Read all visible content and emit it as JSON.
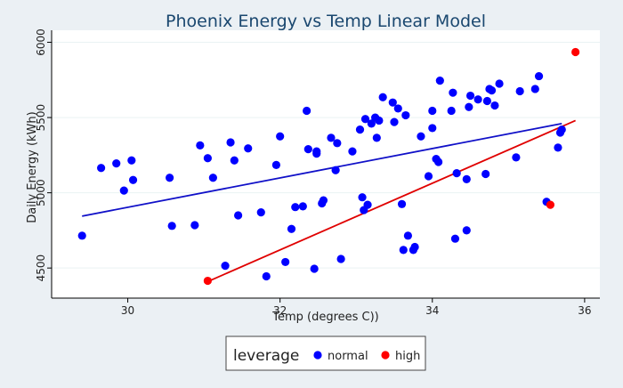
{
  "chart_data": {
    "type": "scatter",
    "title": "Phoenix Energy vs Temp Linear Model",
    "xlabel": "Temp (degrees C))",
    "ylabel": "Daily Energy (kWh)",
    "xlim": [
      29,
      36.2
    ],
    "ylim": [
      4300,
      6080
    ],
    "xticks": [
      30,
      32,
      34,
      36
    ],
    "yticks": [
      4500,
      5000,
      5500,
      6000
    ],
    "grid": "horizontal",
    "legend": {
      "title": "leverage",
      "position": "bottom-center",
      "entries": [
        {
          "label": "normal",
          "color": "#0000ff"
        },
        {
          "label": "high",
          "color": "#ff0000"
        }
      ]
    },
    "series": [
      {
        "name": "normal",
        "color": "#0000ff",
        "points": [
          [
            29.4,
            4715
          ],
          [
            29.65,
            5165
          ],
          [
            29.85,
            5195
          ],
          [
            29.95,
            5015
          ],
          [
            30.05,
            5215
          ],
          [
            30.07,
            5085
          ],
          [
            30.55,
            5100
          ],
          [
            30.58,
            4780
          ],
          [
            30.88,
            4785
          ],
          [
            30.95,
            5315
          ],
          [
            31.05,
            5230
          ],
          [
            31.12,
            5100
          ],
          [
            31.28,
            4515
          ],
          [
            31.35,
            5335
          ],
          [
            31.4,
            5215
          ],
          [
            31.45,
            4850
          ],
          [
            31.58,
            5295
          ],
          [
            31.75,
            4870
          ],
          [
            31.82,
            4445
          ],
          [
            31.95,
            5185
          ],
          [
            32.0,
            5375
          ],
          [
            32.07,
            4540
          ],
          [
            32.15,
            4760
          ],
          [
            32.2,
            4905
          ],
          [
            32.3,
            4910
          ],
          [
            32.35,
            5545
          ],
          [
            32.37,
            5290
          ],
          [
            32.45,
            4495
          ],
          [
            32.48,
            5275
          ],
          [
            32.48,
            5260
          ],
          [
            32.55,
            4930
          ],
          [
            32.57,
            4950
          ],
          [
            32.67,
            5365
          ],
          [
            32.73,
            5150
          ],
          [
            32.75,
            5330
          ],
          [
            32.8,
            4560
          ],
          [
            32.95,
            5275
          ],
          [
            33.05,
            5420
          ],
          [
            33.08,
            4970
          ],
          [
            33.1,
            4885
          ],
          [
            33.12,
            5490
          ],
          [
            33.15,
            4920
          ],
          [
            33.2,
            5460
          ],
          [
            33.25,
            5500
          ],
          [
            33.27,
            5365
          ],
          [
            33.3,
            5480
          ],
          [
            33.35,
            5635
          ],
          [
            33.48,
            5600
          ],
          [
            33.5,
            5470
          ],
          [
            33.55,
            5560
          ],
          [
            33.6,
            4925
          ],
          [
            33.62,
            4620
          ],
          [
            33.65,
            5515
          ],
          [
            33.68,
            4715
          ],
          [
            33.75,
            4620
          ],
          [
            33.77,
            4640
          ],
          [
            33.85,
            5375
          ],
          [
            33.95,
            5110
          ],
          [
            34.0,
            5430
          ],
          [
            34.0,
            5545
          ],
          [
            34.05,
            5225
          ],
          [
            34.08,
            5205
          ],
          [
            34.1,
            5745
          ],
          [
            34.25,
            5545
          ],
          [
            34.27,
            5665
          ],
          [
            34.3,
            4695
          ],
          [
            34.32,
            5130
          ],
          [
            34.45,
            4750
          ],
          [
            34.45,
            5090
          ],
          [
            34.48,
            5570
          ],
          [
            34.5,
            5645
          ],
          [
            34.6,
            5620
          ],
          [
            34.7,
            5125
          ],
          [
            34.72,
            5610
          ],
          [
            34.75,
            5690
          ],
          [
            34.78,
            5680
          ],
          [
            34.82,
            5580
          ],
          [
            34.88,
            5725
          ],
          [
            35.1,
            5235
          ],
          [
            35.15,
            5675
          ],
          [
            35.35,
            5690
          ],
          [
            35.4,
            5775
          ],
          [
            35.5,
            4940
          ],
          [
            35.65,
            5300
          ],
          [
            35.68,
            5400
          ],
          [
            35.7,
            5420
          ]
        ]
      },
      {
        "name": "high",
        "color": "#ff0000",
        "points": [
          [
            31.05,
            4415
          ],
          [
            35.55,
            4920
          ],
          [
            35.88,
            5935
          ]
        ]
      }
    ],
    "fit_lines": [
      {
        "color": "#1010c8",
        "x": [
          29.4,
          35.7
        ],
        "y": [
          4845,
          5460
        ]
      },
      {
        "color": "#e00000",
        "x": [
          31.05,
          35.88
        ],
        "y": [
          4410,
          5480
        ]
      }
    ]
  }
}
